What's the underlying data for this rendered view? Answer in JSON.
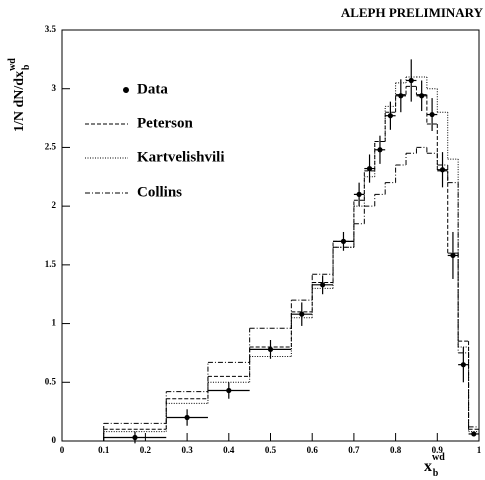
{
  "chart_data": {
    "type": "histogram",
    "title": "ALEPH PRELIMINARY",
    "x_label": "x",
    "x_label_sup": "wd",
    "x_label_sub": "b",
    "y_label": "1/N dN/dx",
    "y_label_sup": "wd",
    "y_label_sub": "b",
    "bins": [
      0,
      0.1,
      0.25,
      0.35,
      0.45,
      0.55,
      0.6,
      0.65,
      0.7,
      0.725,
      0.75,
      0.775,
      0.8,
      0.825,
      0.85,
      0.875,
      0.9,
      0.925,
      0.95,
      0.975,
      1
    ],
    "xlim": [
      0,
      1
    ],
    "ylim": [
      0,
      3.5
    ],
    "xticks": [
      0,
      0.1,
      0.2,
      0.3,
      0.4,
      0.5,
      0.6,
      0.7,
      0.8,
      0.9,
      1
    ],
    "yticks": [
      0,
      0.5,
      1,
      1.5,
      2,
      2.5,
      3,
      3.5
    ],
    "series": [
      {
        "name": "Data",
        "color": "#000000",
        "style": "points",
        "values": [
          null,
          0.03,
          0.2,
          0.43,
          0.78,
          1.08,
          1.33,
          1.7,
          2.1,
          2.32,
          2.48,
          2.77,
          2.94,
          3.07,
          2.94,
          2.78,
          2.31,
          1.58,
          0.65,
          0.06
        ],
        "errors": [
          null,
          0.05,
          0.07,
          0.07,
          0.08,
          0.1,
          0.08,
          0.08,
          0.1,
          0.12,
          0.12,
          0.12,
          0.14,
          0.18,
          0.13,
          0.14,
          0.15,
          0.2,
          0.15,
          0.02
        ]
      },
      {
        "name": "Peterson",
        "color": "#000000",
        "style": "dashed",
        "values": [
          0,
          0.1,
          0.36,
          0.55,
          0.8,
          1.1,
          1.35,
          1.7,
          2.05,
          2.3,
          2.55,
          2.8,
          2.95,
          3.02,
          2.95,
          2.7,
          2.3,
          1.6,
          0.85,
          0.1
        ]
      },
      {
        "name": "Kartvelishvili",
        "color": "#000000",
        "style": "dotted",
        "values": [
          0,
          0.08,
          0.32,
          0.5,
          0.72,
          1.05,
          1.3,
          1.65,
          2.0,
          2.25,
          2.55,
          2.85,
          3.05,
          3.1,
          3.1,
          3.0,
          2.8,
          2.4,
          0.8,
          0.08
        ]
      },
      {
        "name": "Collins",
        "color": "#000000",
        "style": "dashdot",
        "values": [
          0,
          0.15,
          0.42,
          0.67,
          0.96,
          1.2,
          1.42,
          1.65,
          1.85,
          2.0,
          2.1,
          2.2,
          2.35,
          2.45,
          2.5,
          2.45,
          2.35,
          2.2,
          0.75,
          0.12
        ]
      }
    ]
  }
}
